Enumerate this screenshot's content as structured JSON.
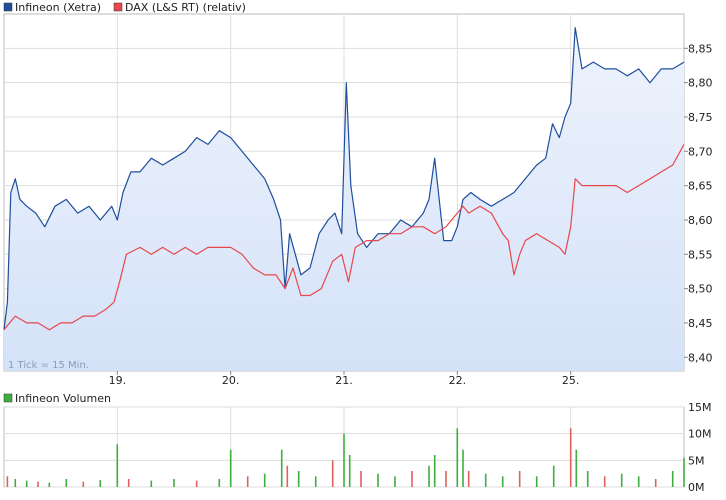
{
  "legend_main": [
    {
      "name": "Infineon (Xetra)",
      "color": "#1f4e9c"
    },
    {
      "name": "DAX (L&S RT) (relativ)",
      "color": "#e8474b"
    }
  ],
  "legend_volume": {
    "name": "Infineon Volumen",
    "color": "#3fae3f"
  },
  "tick_note": "1 Tick = 15 Min.",
  "colors": {
    "price": "#1f4e9c",
    "dax": "#e8474b",
    "area": "#d4e2f8",
    "vol_up": "#3fae3f",
    "vol_down": "#e06060",
    "grid": "#dddddd"
  },
  "chart_data": [
    {
      "type": "line",
      "x_tick_labels": [
        "19.",
        "20.",
        "21.",
        "22.",
        "25."
      ],
      "x_tick_pos": [
        1,
        2,
        3,
        4,
        5
      ],
      "xlim": [
        0,
        6.0
      ],
      "ylim": [
        8.38,
        8.9
      ],
      "y_ticks": [
        8.4,
        8.45,
        8.5,
        8.55,
        8.6,
        8.65,
        8.7,
        8.75,
        8.8,
        8.85
      ],
      "y_tick_labels": [
        "8,40",
        "8,45",
        "8,50",
        "8,55",
        "8,60",
        "8,65",
        "8,70",
        "8,75",
        "8,80",
        "8,85"
      ],
      "grid": true,
      "series": [
        {
          "name": "Infineon (Xetra)",
          "points": [
            [
              0,
              8.44
            ],
            [
              0.03,
              8.48
            ],
            [
              0.06,
              8.64
            ],
            [
              0.1,
              8.66
            ],
            [
              0.14,
              8.63
            ],
            [
              0.2,
              8.62
            ],
            [
              0.28,
              8.61
            ],
            [
              0.36,
              8.59
            ],
            [
              0.45,
              8.62
            ],
            [
              0.55,
              8.63
            ],
            [
              0.65,
              8.61
            ],
            [
              0.75,
              8.62
            ],
            [
              0.85,
              8.6
            ],
            [
              0.95,
              8.62
            ],
            [
              1.0,
              8.6
            ],
            [
              1.05,
              8.64
            ],
            [
              1.12,
              8.67
            ],
            [
              1.2,
              8.67
            ],
            [
              1.3,
              8.69
            ],
            [
              1.4,
              8.68
            ],
            [
              1.5,
              8.69
            ],
            [
              1.6,
              8.7
            ],
            [
              1.7,
              8.72
            ],
            [
              1.8,
              8.71
            ],
            [
              1.9,
              8.73
            ],
            [
              2.0,
              8.72
            ],
            [
              2.1,
              8.7
            ],
            [
              2.2,
              8.68
            ],
            [
              2.3,
              8.66
            ],
            [
              2.38,
              8.63
            ],
            [
              2.44,
              8.6
            ],
            [
              2.48,
              8.5
            ],
            [
              2.52,
              8.58
            ],
            [
              2.57,
              8.55
            ],
            [
              2.62,
              8.52
            ],
            [
              2.7,
              8.53
            ],
            [
              2.78,
              8.58
            ],
            [
              2.86,
              8.6
            ],
            [
              2.92,
              8.61
            ],
            [
              2.98,
              8.58
            ],
            [
              3.02,
              8.8
            ],
            [
              3.06,
              8.65
            ],
            [
              3.12,
              8.58
            ],
            [
              3.2,
              8.56
            ],
            [
              3.3,
              8.58
            ],
            [
              3.4,
              8.58
            ],
            [
              3.5,
              8.6
            ],
            [
              3.6,
              8.59
            ],
            [
              3.7,
              8.61
            ],
            [
              3.75,
              8.63
            ],
            [
              3.8,
              8.69
            ],
            [
              3.84,
              8.63
            ],
            [
              3.88,
              8.57
            ],
            [
              3.95,
              8.57
            ],
            [
              4.0,
              8.59
            ],
            [
              4.05,
              8.63
            ],
            [
              4.12,
              8.64
            ],
            [
              4.2,
              8.63
            ],
            [
              4.3,
              8.62
            ],
            [
              4.4,
              8.63
            ],
            [
              4.5,
              8.64
            ],
            [
              4.6,
              8.66
            ],
            [
              4.7,
              8.68
            ],
            [
              4.78,
              8.69
            ],
            [
              4.84,
              8.74
            ],
            [
              4.9,
              8.72
            ],
            [
              4.95,
              8.75
            ],
            [
              5.0,
              8.77
            ],
            [
              5.04,
              8.88
            ],
            [
              5.1,
              8.82
            ],
            [
              5.2,
              8.83
            ],
            [
              5.3,
              8.82
            ],
            [
              5.4,
              8.82
            ],
            [
              5.5,
              8.81
            ],
            [
              5.6,
              8.82
            ],
            [
              5.7,
              8.8
            ],
            [
              5.8,
              8.82
            ],
            [
              5.9,
              8.82
            ],
            [
              6.0,
              8.83
            ]
          ]
        },
        {
          "name": "DAX (L&S RT) (relativ)",
          "points": [
            [
              0,
              8.44
            ],
            [
              0.1,
              8.46
            ],
            [
              0.2,
              8.45
            ],
            [
              0.3,
              8.45
            ],
            [
              0.4,
              8.44
            ],
            [
              0.5,
              8.45
            ],
            [
              0.6,
              8.45
            ],
            [
              0.7,
              8.46
            ],
            [
              0.8,
              8.46
            ],
            [
              0.9,
              8.47
            ],
            [
              0.97,
              8.48
            ],
            [
              1.02,
              8.51
            ],
            [
              1.08,
              8.55
            ],
            [
              1.2,
              8.56
            ],
            [
              1.3,
              8.55
            ],
            [
              1.4,
              8.56
            ],
            [
              1.5,
              8.55
            ],
            [
              1.6,
              8.56
            ],
            [
              1.7,
              8.55
            ],
            [
              1.8,
              8.56
            ],
            [
              1.9,
              8.56
            ],
            [
              2.0,
              8.56
            ],
            [
              2.1,
              8.55
            ],
            [
              2.2,
              8.53
            ],
            [
              2.3,
              8.52
            ],
            [
              2.4,
              8.52
            ],
            [
              2.48,
              8.5
            ],
            [
              2.55,
              8.53
            ],
            [
              2.62,
              8.49
            ],
            [
              2.7,
              8.49
            ],
            [
              2.8,
              8.5
            ],
            [
              2.9,
              8.54
            ],
            [
              2.98,
              8.55
            ],
            [
              3.04,
              8.51
            ],
            [
              3.1,
              8.56
            ],
            [
              3.2,
              8.57
            ],
            [
              3.3,
              8.57
            ],
            [
              3.4,
              8.58
            ],
            [
              3.5,
              8.58
            ],
            [
              3.6,
              8.59
            ],
            [
              3.7,
              8.59
            ],
            [
              3.8,
              8.58
            ],
            [
              3.9,
              8.59
            ],
            [
              4.0,
              8.61
            ],
            [
              4.05,
              8.62
            ],
            [
              4.1,
              8.61
            ],
            [
              4.2,
              8.62
            ],
            [
              4.3,
              8.61
            ],
            [
              4.4,
              8.58
            ],
            [
              4.45,
              8.57
            ],
            [
              4.5,
              8.52
            ],
            [
              4.55,
              8.55
            ],
            [
              4.6,
              8.57
            ],
            [
              4.7,
              8.58
            ],
            [
              4.8,
              8.57
            ],
            [
              4.9,
              8.56
            ],
            [
              4.95,
              8.55
            ],
            [
              5.0,
              8.59
            ],
            [
              5.04,
              8.66
            ],
            [
              5.1,
              8.65
            ],
            [
              5.2,
              8.65
            ],
            [
              5.3,
              8.65
            ],
            [
              5.4,
              8.65
            ],
            [
              5.5,
              8.64
            ],
            [
              5.6,
              8.65
            ],
            [
              5.7,
              8.66
            ],
            [
              5.8,
              8.67
            ],
            [
              5.9,
              8.68
            ],
            [
              6.0,
              8.71
            ]
          ]
        }
      ]
    },
    {
      "type": "bar",
      "xlim": [
        0,
        6.0
      ],
      "ylim": [
        0,
        15
      ],
      "y_ticks": [
        0,
        5,
        10,
        15
      ],
      "y_tick_labels": [
        "0M",
        "5M",
        "10M",
        "15M"
      ],
      "series": [
        {
          "name": "Infineon Volumen",
          "points": [
            [
              0.03,
              2
            ],
            [
              0.1,
              1.5
            ],
            [
              0.2,
              1.2
            ],
            [
              0.3,
              1
            ],
            [
              0.4,
              0.8
            ],
            [
              0.55,
              1.5
            ],
            [
              0.7,
              1
            ],
            [
              0.85,
              1.3
            ],
            [
              1.0,
              8
            ],
            [
              1.1,
              1.5
            ],
            [
              1.3,
              1.2
            ],
            [
              1.5,
              1.5
            ],
            [
              1.7,
              1.2
            ],
            [
              1.9,
              1.5
            ],
            [
              2.0,
              7
            ],
            [
              2.15,
              2
            ],
            [
              2.3,
              2.5
            ],
            [
              2.45,
              7
            ],
            [
              2.5,
              4
            ],
            [
              2.6,
              3
            ],
            [
              2.75,
              2
            ],
            [
              2.9,
              5
            ],
            [
              3.0,
              10
            ],
            [
              3.05,
              6
            ],
            [
              3.15,
              3
            ],
            [
              3.3,
              2.5
            ],
            [
              3.45,
              2
            ],
            [
              3.6,
              3
            ],
            [
              3.75,
              4
            ],
            [
              3.8,
              6
            ],
            [
              3.9,
              3
            ],
            [
              4.0,
              11
            ],
            [
              4.05,
              7
            ],
            [
              4.1,
              3
            ],
            [
              4.25,
              2.5
            ],
            [
              4.4,
              2
            ],
            [
              4.55,
              3
            ],
            [
              4.7,
              2
            ],
            [
              4.85,
              4
            ],
            [
              5.0,
              11
            ],
            [
              5.05,
              7
            ],
            [
              5.15,
              3
            ],
            [
              5.3,
              2
            ],
            [
              5.45,
              2.5
            ],
            [
              5.6,
              2
            ],
            [
              5.75,
              1.5
            ],
            [
              5.9,
              3
            ],
            [
              6.0,
              5.5
            ]
          ]
        }
      ]
    }
  ]
}
